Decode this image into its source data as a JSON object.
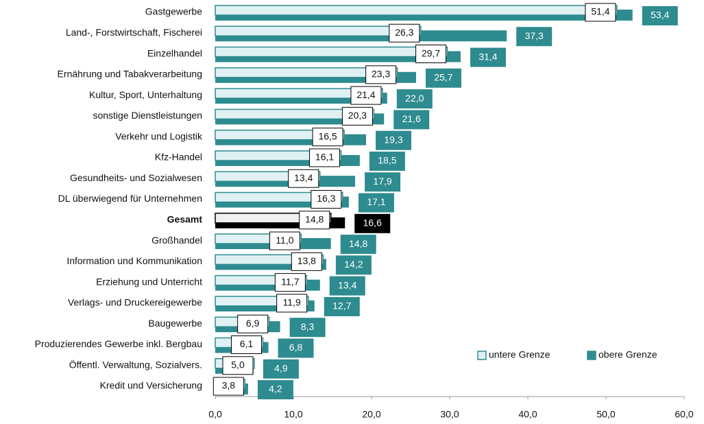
{
  "chart_data": {
    "type": "bar",
    "orientation": "horizontal",
    "categories": [
      "Gastgewerbe",
      "Land-, Forstwirtschaft, Fischerei",
      "Einzelhandel",
      "Ernährung und Tabakverarbeitung",
      "Kultur, Sport, Unterhaltung",
      "sonstige Dienstleistungen",
      "Verkehr und Logistik",
      "Kfz-Handel",
      "Gesundheits- und Sozialwesen",
      "DL überwiegend für Unternehmen",
      "Gesamt",
      "Großhandel",
      "Information und Kommunikation",
      "Erziehung und Unterricht",
      "Verlags- und Druckereigewerbe",
      "Baugewerbe",
      "Produzierendes Gewerbe inkl. Bergbau",
      "Öffentl. Verwaltung, Sozialvers.",
      "Kredit und Versicherung"
    ],
    "series": [
      {
        "name": "untere Grenze",
        "color": "#dff1f3",
        "border": "#2e8b8f",
        "values": [
          51.4,
          26.3,
          29.7,
          23.3,
          21.4,
          20.3,
          16.5,
          16.1,
          13.4,
          16.3,
          14.8,
          11.0,
          13.8,
          11.7,
          11.9,
          6.9,
          6.1,
          5.0,
          3.8
        ],
        "value_labels": [
          "51,4",
          "26,3",
          "29,7",
          "23,3",
          "21,4",
          "20,3",
          "16,5",
          "16,1",
          "13,4",
          "16,3",
          "14,8",
          "11,0",
          "13,8",
          "11,7",
          "11,9",
          "6,9",
          "6,1",
          "5,0",
          "3,8"
        ]
      },
      {
        "name": "obere Grenze",
        "color": "#2e8b8f",
        "values": [
          53.4,
          37.3,
          31.4,
          25.7,
          22.0,
          21.6,
          19.3,
          18.5,
          17.9,
          17.1,
          16.6,
          14.8,
          14.2,
          13.4,
          12.7,
          8.3,
          6.8,
          4.9,
          4.2
        ],
        "value_labels": [
          "53,4",
          "37,3",
          "31,4",
          "25,7",
          "22,0",
          "21,6",
          "19,3",
          "18,5",
          "17,9",
          "17,1",
          "16,6",
          "14,8",
          "14,2",
          "13,4",
          "12,7",
          "8,3",
          "6,8",
          "4,9",
          "4,2"
        ]
      }
    ],
    "highlight": "Gesamt",
    "highlight_color": "#000000",
    "xlim": [
      0,
      60
    ],
    "xticks": [
      {
        "value": 0,
        "label": "0,0"
      },
      {
        "value": 10,
        "label": "10,0"
      },
      {
        "value": 20,
        "label": "20,0"
      },
      {
        "value": 30,
        "label": "30,0"
      },
      {
        "value": 40,
        "label": "40,0"
      },
      {
        "value": 50,
        "label": "50,0"
      },
      {
        "value": 60,
        "label": "60,0"
      }
    ],
    "legend": "lower right"
  }
}
